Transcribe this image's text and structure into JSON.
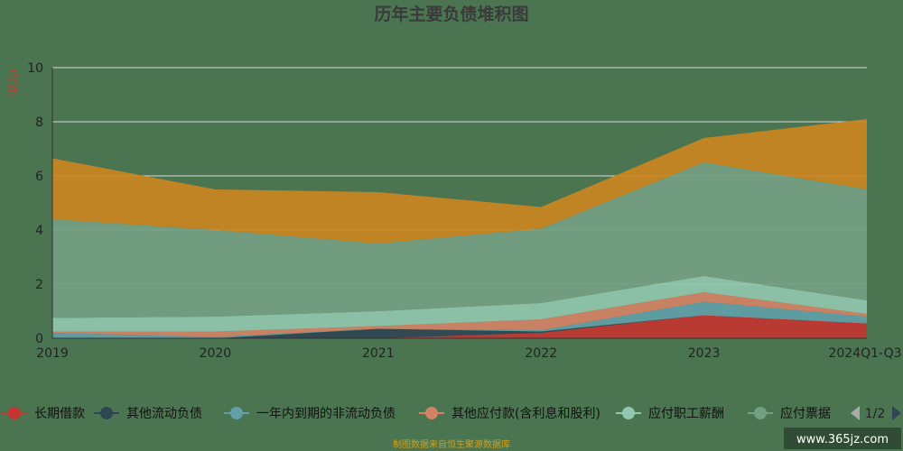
{
  "chart_data": {
    "type": "area",
    "stacked": true,
    "title": "历年主要负债堆积图",
    "ylabel": "(亿元)",
    "xlabel": "",
    "categories": [
      "2019",
      "2020",
      "2021",
      "2022",
      "2023",
      "2024Q1-Q3"
    ],
    "ylim": [
      0,
      10
    ],
    "yticks": [
      0,
      2,
      4,
      6,
      8,
      10
    ],
    "grid": true,
    "legend_position": "bottom",
    "series": [
      {
        "name": "长期借款",
        "color": "#c23531",
        "values": [
          0.0,
          0.0,
          0.0,
          0.2,
          0.85,
          0.55
        ]
      },
      {
        "name": "其他流动负债",
        "color": "#2f4554",
        "values": [
          0.0,
          0.0,
          0.35,
          0.05,
          0.0,
          0.0
        ]
      },
      {
        "name": "一年内到期的非流动负债",
        "color": "#61a0a8",
        "values": [
          0.2,
          0.05,
          0.0,
          0.05,
          0.5,
          0.25
        ]
      },
      {
        "name": "其他应付款(含利息和股利)",
        "color": "#d48265",
        "values": [
          0.05,
          0.2,
          0.1,
          0.4,
          0.35,
          0.1
        ]
      },
      {
        "name": "应付职工薪酬",
        "color": "#91c7ae",
        "values": [
          0.5,
          0.55,
          0.55,
          0.6,
          0.6,
          0.5
        ]
      },
      {
        "name": "应付票据",
        "color": "#749f83",
        "values": [
          3.65,
          3.2,
          2.5,
          2.75,
          4.2,
          4.1
        ]
      },
      {
        "name": "",
        "color": "#ca8622",
        "values": [
          2.25,
          1.5,
          1.9,
          0.8,
          0.9,
          2.6
        ]
      }
    ]
  },
  "legend": {
    "visible_count": 6,
    "pager_text": "1/2"
  },
  "footer": "制图数据来自恒生聚源数据库",
  "watermark": "www.365jz.com",
  "colors": {
    "background": "#4a7550",
    "grid": "#d9d9d9",
    "axis": "#333333"
  }
}
